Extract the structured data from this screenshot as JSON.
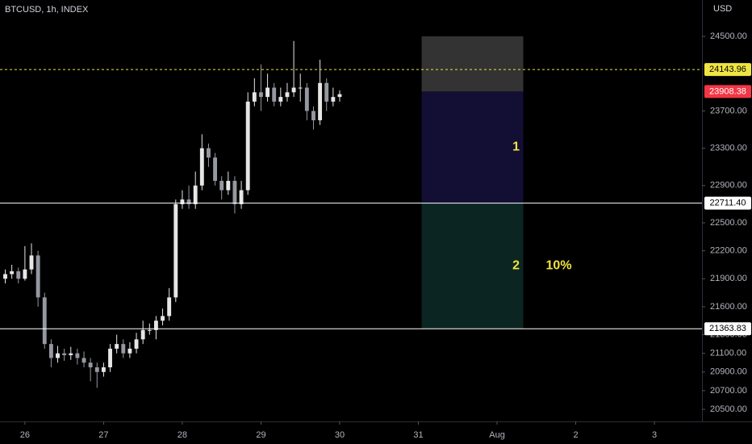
{
  "chart_data": {
    "type": "candlestick",
    "title": "BTCUSD, 1h, INDEX",
    "y_unit": "USD",
    "up_color": "#e6e6e6",
    "down_color": "#9598a1",
    "xlim": [
      -7.6,
      206.5
    ],
    "xticks": [
      {
        "value": 0,
        "label": "26"
      },
      {
        "value": 24,
        "label": "27"
      },
      {
        "value": 48,
        "label": "28"
      },
      {
        "value": 72,
        "label": "29"
      },
      {
        "value": 96,
        "label": "30"
      },
      {
        "value": 120,
        "label": "31"
      },
      {
        "value": 144,
        "label": "Aug"
      },
      {
        "value": 168,
        "label": "2"
      },
      {
        "value": 192,
        "label": "3"
      }
    ],
    "ylim": [
      20370,
      24890
    ],
    "yticks": [
      {
        "value": 24500,
        "label": "24500.00"
      },
      {
        "value": 23700,
        "label": "23700.00"
      },
      {
        "value": 23300,
        "label": "23300.00"
      },
      {
        "value": 22900,
        "label": "22900.00"
      },
      {
        "value": 22500,
        "label": "22500.00"
      },
      {
        "value": 22200,
        "label": "22200.00"
      },
      {
        "value": 21900,
        "label": "21900.00"
      },
      {
        "value": 21600,
        "label": "21600.00"
      },
      {
        "value": 21300,
        "label": "21300.00"
      },
      {
        "value": 21100,
        "label": "21100.00"
      },
      {
        "value": 20900,
        "label": "20900.00"
      },
      {
        "value": 20700,
        "label": "20700.00"
      },
      {
        "value": 20500,
        "label": "20500.00"
      }
    ],
    "x": [
      -6,
      -4,
      -2,
      0,
      2,
      4,
      6,
      8,
      10,
      12,
      14,
      16,
      18,
      20,
      22,
      24,
      26,
      28,
      30,
      32,
      34,
      36,
      38,
      40,
      42,
      44,
      46,
      48,
      50,
      52,
      54,
      56,
      58,
      60,
      62,
      64,
      66,
      68,
      70,
      72,
      74,
      76,
      78,
      80,
      82,
      84,
      86,
      88,
      90,
      92,
      94,
      96
    ],
    "open": [
      21900,
      21950,
      21980,
      21900,
      22000,
      22150,
      21700,
      21200,
      21050,
      21100,
      21080,
      21100,
      21050,
      21000,
      20950,
      20900,
      20950,
      21150,
      21200,
      21100,
      21150,
      21250,
      21350,
      21350,
      21450,
      21500,
      21700,
      22700,
      22750,
      22700,
      22900,
      23300,
      23200,
      22950,
      22850,
      22950,
      22700,
      22850,
      23800,
      23900,
      23850,
      23950,
      23800,
      23850,
      23900,
      23950,
      23950,
      23700,
      23600,
      24000,
      23800,
      23850
    ],
    "high": [
      22000,
      22050,
      22020,
      22250,
      22280,
      22200,
      21750,
      21250,
      21180,
      21150,
      21170,
      21150,
      21120,
      21050,
      21000,
      21000,
      21200,
      21300,
      21250,
      21220,
      21320,
      21450,
      21420,
      21500,
      21580,
      21800,
      22750,
      22850,
      22900,
      23050,
      23450,
      23350,
      23250,
      23000,
      23050,
      23000,
      22950,
      23900,
      24050,
      24200,
      24100,
      24000,
      23950,
      24000,
      24450,
      24100,
      24000,
      23750,
      24250,
      24050,
      23950,
      23920
    ],
    "low": [
      21850,
      21900,
      21850,
      21880,
      21950,
      21600,
      21150,
      20950,
      21000,
      21020,
      21030,
      20980,
      20950,
      20800,
      20730,
      20850,
      20900,
      21100,
      21050,
      21050,
      21100,
      21200,
      21300,
      21250,
      21400,
      21450,
      21650,
      22650,
      22650,
      22650,
      22850,
      23100,
      22900,
      22750,
      22800,
      22600,
      22650,
      22800,
      23750,
      23700,
      23800,
      23750,
      23750,
      23800,
      23850,
      23800,
      23600,
      23500,
      23550,
      23700,
      23750,
      23800
    ],
    "close": [
      21950,
      21980,
      21900,
      22000,
      22150,
      21700,
      21200,
      21050,
      21100,
      21080,
      21100,
      21050,
      21000,
      20950,
      20900,
      20950,
      21150,
      21200,
      21100,
      21150,
      21250,
      21350,
      21350,
      21450,
      21500,
      21700,
      22700,
      22750,
      22700,
      22900,
      23300,
      23200,
      22950,
      22850,
      22950,
      22700,
      22850,
      23800,
      23900,
      23850,
      23950,
      23800,
      23850,
      23900,
      23950,
      23950,
      23700,
      23600,
      24000,
      23800,
      23850,
      23880
    ],
    "price_lines": [
      {
        "value": 24143.96,
        "label": "24143.96",
        "color": "#f0e442",
        "text_color": "#000000",
        "style": "dashed"
      },
      {
        "value": 23908.38,
        "label": "23908.38",
        "color": "#f23645",
        "text_color": "#ffffff",
        "style": "none"
      },
      {
        "value": 22711.4,
        "label": "22711.40",
        "color": "#ffffff",
        "text_color": "#000000",
        "style": "solid"
      },
      {
        "value": 21363.83,
        "label": "21363.83",
        "color": "#ffffff",
        "text_color": "#000000",
        "style": "solid"
      }
    ],
    "zones": [
      {
        "from": 24500,
        "to": 23908.38,
        "x_start": 121,
        "x_end": 152,
        "color": "#333333"
      },
      {
        "from": 23908.38,
        "to": 22711.4,
        "x_start": 121,
        "x_end": 152,
        "color": "#130e33",
        "label": "1"
      },
      {
        "from": 22711.4,
        "to": 21363.83,
        "x_start": 121,
        "x_end": 152,
        "color": "#0b2622",
        "label": "2",
        "note": "10%"
      }
    ]
  }
}
